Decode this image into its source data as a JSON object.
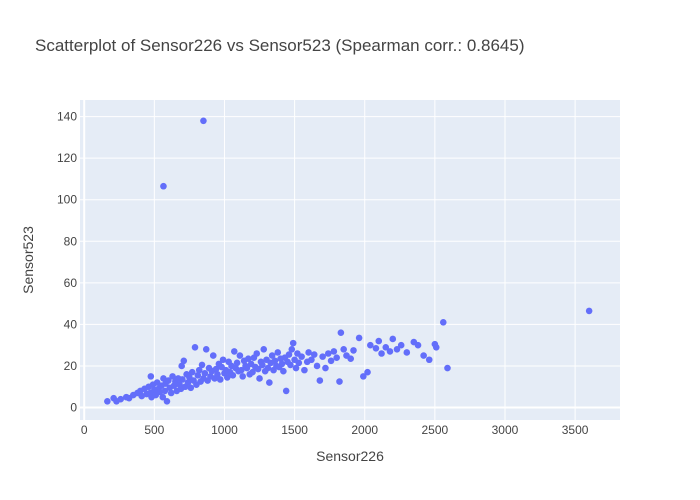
{
  "chart_data": {
    "type": "scatter",
    "title": "Scatterplot of Sensor226 vs Sensor523 (Spearman corr.: 0.8645)",
    "xlabel": "Sensor226",
    "ylabel": "Sensor523",
    "xlim": [
      -30,
      3820
    ],
    "ylim": [
      -6,
      148
    ],
    "xticks": [
      0,
      500,
      1000,
      1500,
      2000,
      2500,
      3000,
      3500
    ],
    "xtick_labels": [
      "0",
      "500",
      "1000",
      "1500",
      "2000",
      "2500",
      "3000",
      "3500"
    ],
    "yticks": [
      0,
      20,
      40,
      60,
      80,
      100,
      120,
      140
    ],
    "ytick_labels": [
      "0",
      "20",
      "40",
      "60",
      "80",
      "100",
      "120",
      "140"
    ],
    "grid": true,
    "legend": "none",
    "colors": {
      "marker": "#636efa",
      "plot_bg": "#e5ecf6",
      "grid": "#ffffff"
    },
    "points": [
      [
        165,
        3
      ],
      [
        210,
        4.5
      ],
      [
        230,
        3
      ],
      [
        260,
        4
      ],
      [
        300,
        5
      ],
      [
        320,
        4.5
      ],
      [
        350,
        6
      ],
      [
        380,
        7
      ],
      [
        400,
        8
      ],
      [
        410,
        5.5
      ],
      [
        430,
        9
      ],
      [
        445,
        6.5
      ],
      [
        460,
        10
      ],
      [
        470,
        7
      ],
      [
        475,
        15
      ],
      [
        480,
        5
      ],
      [
        490,
        11
      ],
      [
        500,
        8.5
      ],
      [
        510,
        6
      ],
      [
        520,
        12
      ],
      [
        530,
        9
      ],
      [
        540,
        7.5
      ],
      [
        550,
        10.5
      ],
      [
        560,
        5
      ],
      [
        565,
        14
      ],
      [
        575,
        8
      ],
      [
        580,
        11.5
      ],
      [
        590,
        3
      ],
      [
        600,
        13
      ],
      [
        610,
        9.5
      ],
      [
        620,
        7
      ],
      [
        630,
        15
      ],
      [
        640,
        10.5
      ],
      [
        650,
        12.5
      ],
      [
        660,
        8
      ],
      [
        670,
        14
      ],
      [
        680,
        11
      ],
      [
        690,
        9
      ],
      [
        695,
        20
      ],
      [
        700,
        13.5
      ],
      [
        710,
        22.5
      ],
      [
        720,
        10
      ],
      [
        730,
        16
      ],
      [
        740,
        12
      ],
      [
        750,
        14.5
      ],
      [
        760,
        9.5
      ],
      [
        770,
        17
      ],
      [
        780,
        13
      ],
      [
        790,
        29
      ],
      [
        800,
        11
      ],
      [
        810,
        15.5
      ],
      [
        820,
        18
      ],
      [
        830,
        12.5
      ],
      [
        840,
        20.5
      ],
      [
        850,
        14
      ],
      [
        860,
        16.5
      ],
      [
        870,
        28
      ],
      [
        880,
        13
      ],
      [
        890,
        19
      ],
      [
        900,
        15
      ],
      [
        910,
        17.5
      ],
      [
        920,
        25
      ],
      [
        930,
        14
      ],
      [
        940,
        18.5
      ],
      [
        950,
        16
      ],
      [
        960,
        21
      ],
      [
        970,
        13.5
      ],
      [
        980,
        19.5
      ],
      [
        990,
        23
      ],
      [
        1000,
        16.5
      ],
      [
        1010,
        18
      ],
      [
        1020,
        14.5
      ],
      [
        1030,
        22
      ],
      [
        1040,
        17
      ],
      [
        1050,
        20
      ],
      [
        1060,
        15.5
      ],
      [
        1070,
        27
      ],
      [
        1080,
        19
      ],
      [
        1090,
        21.5
      ],
      [
        1100,
        17.5
      ],
      [
        1110,
        25
      ],
      [
        1120,
        18
      ],
      [
        1130,
        15
      ],
      [
        1140,
        22.5
      ],
      [
        1150,
        20
      ],
      [
        1160,
        19
      ],
      [
        1170,
        23.5
      ],
      [
        1180,
        16
      ],
      [
        1190,
        21
      ],
      [
        1200,
        17
      ],
      [
        1210,
        24
      ],
      [
        1220,
        19.5
      ],
      [
        1230,
        26
      ],
      [
        1240,
        18.5
      ],
      [
        1250,
        14
      ],
      [
        1260,
        22
      ],
      [
        1270,
        20.5
      ],
      [
        1280,
        28
      ],
      [
        1290,
        17.5
      ],
      [
        1300,
        23
      ],
      [
        1310,
        19
      ],
      [
        1320,
        12
      ],
      [
        1330,
        21.5
      ],
      [
        1340,
        25
      ],
      [
        1350,
        18
      ],
      [
        1360,
        22.5
      ],
      [
        1370,
        20
      ],
      [
        1380,
        26.5
      ],
      [
        1390,
        19.5
      ],
      [
        1400,
        23.5
      ],
      [
        1410,
        21
      ],
      [
        1420,
        17.5
      ],
      [
        1430,
        24
      ],
      [
        1440,
        8
      ],
      [
        1450,
        22
      ],
      [
        1460,
        25.5
      ],
      [
        1470,
        20.5
      ],
      [
        1480,
        28
      ],
      [
        1490,
        31
      ],
      [
        1500,
        23
      ],
      [
        1510,
        19
      ],
      [
        1520,
        26
      ],
      [
        1530,
        21.5
      ],
      [
        1550,
        24.5
      ],
      [
        1570,
        18
      ],
      [
        1590,
        22
      ],
      [
        1600,
        26.5
      ],
      [
        1620,
        23
      ],
      [
        1640,
        25.5
      ],
      [
        1660,
        20
      ],
      [
        1680,
        13
      ],
      [
        1700,
        24.5
      ],
      [
        1720,
        19
      ],
      [
        1740,
        26
      ],
      [
        1760,
        22.5
      ],
      [
        1780,
        27
      ],
      [
        1800,
        24
      ],
      [
        1820,
        12.5
      ],
      [
        1830,
        36
      ],
      [
        1850,
        28
      ],
      [
        1870,
        25
      ],
      [
        1900,
        23.5
      ],
      [
        1920,
        27.5
      ],
      [
        1960,
        33.5
      ],
      [
        1990,
        15
      ],
      [
        2020,
        17
      ],
      [
        2040,
        30
      ],
      [
        2080,
        28.5
      ],
      [
        2100,
        32
      ],
      [
        2120,
        26
      ],
      [
        2150,
        29
      ],
      [
        2180,
        27
      ],
      [
        2200,
        33
      ],
      [
        2230,
        28
      ],
      [
        2260,
        30
      ],
      [
        2300,
        26.5
      ],
      [
        2350,
        31.5
      ],
      [
        2380,
        30
      ],
      [
        2420,
        25
      ],
      [
        2460,
        23
      ],
      [
        2500,
        30.5
      ],
      [
        2510,
        29
      ],
      [
        2560,
        41
      ],
      [
        2590,
        19
      ],
      [
        3600,
        46.5
      ],
      [
        565,
        106.5
      ],
      [
        850,
        138
      ]
    ]
  }
}
